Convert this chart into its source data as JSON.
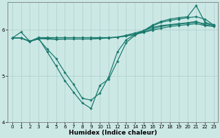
{
  "xlabel": "Humidex (Indice chaleur)",
  "background_color": "#cce8e5",
  "grid_color": "#aacfcc",
  "line_color": "#1a7a6e",
  "x": [
    0,
    1,
    2,
    3,
    4,
    5,
    6,
    7,
    8,
    9,
    10,
    11,
    12,
    13,
    14,
    15,
    16,
    17,
    18,
    19,
    20,
    21,
    22,
    23
  ],
  "series": [
    [
      5.82,
      5.95,
      5.75,
      5.83,
      5.83,
      5.83,
      5.83,
      5.83,
      5.83,
      5.83,
      5.83,
      5.83,
      5.84,
      5.86,
      5.9,
      5.95,
      6.02,
      6.07,
      6.1,
      6.12,
      6.14,
      6.16,
      6.13,
      6.1
    ],
    [
      5.82,
      5.82,
      5.75,
      5.81,
      5.8,
      5.79,
      5.8,
      5.8,
      5.8,
      5.8,
      5.81,
      5.82,
      5.84,
      5.88,
      5.93,
      5.98,
      6.05,
      6.09,
      6.11,
      6.13,
      6.15,
      6.18,
      6.1,
      6.08
    ],
    [
      5.82,
      5.82,
      5.75,
      5.82,
      5.52,
      5.22,
      4.9,
      4.65,
      4.42,
      4.3,
      4.8,
      4.93,
      5.32,
      5.72,
      5.88,
      5.97,
      6.08,
      6.16,
      6.2,
      6.23,
      6.26,
      6.28,
      6.23,
      6.1
    ],
    [
      5.82,
      5.82,
      5.75,
      5.8,
      5.58,
      5.38,
      5.08,
      4.82,
      4.52,
      4.48,
      4.63,
      4.98,
      5.52,
      5.78,
      5.9,
      5.98,
      6.1,
      6.18,
      6.23,
      6.26,
      6.28,
      6.52,
      6.16,
      6.1
    ],
    [
      5.82,
      5.82,
      5.75,
      5.8,
      5.82,
      5.8,
      5.8,
      5.8,
      5.8,
      5.8,
      5.82,
      5.82,
      5.84,
      5.87,
      5.9,
      5.94,
      5.99,
      6.03,
      6.07,
      6.09,
      6.11,
      6.13,
      6.09,
      6.07
    ]
  ],
  "ylim": [
    4.0,
    6.6
  ],
  "yticks": [
    4,
    5,
    6
  ],
  "xlim": [
    -0.5,
    23.5
  ],
  "tick_fontsize": 5.0,
  "xlabel_fontsize": 6.5,
  "marker": "D",
  "markersize": 1.8,
  "linewidth": 0.9
}
